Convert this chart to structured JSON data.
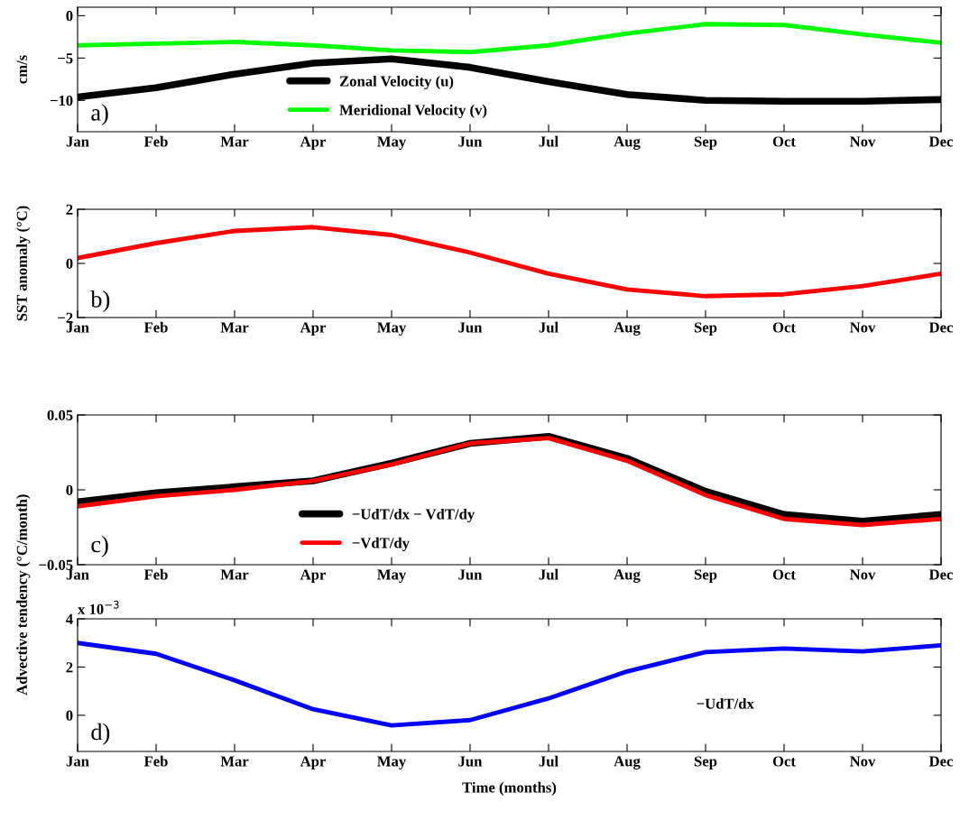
{
  "chart_data": [
    {
      "type": "line",
      "ylabel": "cm/s",
      "categories": [
        "Jan",
        "Feb",
        "Mar",
        "Apr",
        "May",
        "Jun",
        "Jul",
        "Aug",
        "Sep",
        "Oct",
        "Nov",
        "Dec"
      ],
      "ylim": [
        -13.7,
        1
      ],
      "yticks": [
        {
          "value": -10,
          "label": "−10"
        },
        {
          "value": -5,
          "label": "−5"
        },
        0
      ],
      "legend": "bottom",
      "grid": false,
      "annotations": [
        "a)"
      ],
      "series": [
        {
          "name": "Zonal Velocity (u)",
          "color": "#000000",
          "values": [
            -9.6,
            -8.5,
            -6.9,
            -5.6,
            -5.1,
            -6.1,
            -7.8,
            -9.3,
            -10,
            -10.1,
            -10.1,
            -9.9
          ]
        },
        {
          "name": "Meridional Velocity (v)",
          "color": "#00ff00",
          "values": [
            -3.5,
            -3.3,
            -3.1,
            -3.5,
            -4.1,
            -4.3,
            -3.5,
            -2.1,
            -1.0,
            -1.1,
            -2.2,
            -3.2
          ]
        }
      ]
    },
    {
      "type": "line",
      "ylabel": "SST anomaly (°C)",
      "categories": [
        "Jan",
        "Feb",
        "Mar",
        "Apr",
        "May",
        "Jun",
        "Jul",
        "Aug",
        "Sep",
        "Oct",
        "Nov",
        "Dec"
      ],
      "ylim": [
        -2,
        2
      ],
      "yticks": [
        {
          "value": -2,
          "label": "−2"
        },
        0,
        2
      ],
      "grid": false,
      "annotations": [
        "b)"
      ],
      "series": [
        {
          "color": "#ff0000",
          "values": [
            0.2,
            0.75,
            1.2,
            1.34,
            1.05,
            0.4,
            -0.38,
            -0.96,
            -1.21,
            -1.14,
            -0.84,
            -0.38
          ]
        }
      ]
    },
    {
      "type": "line",
      "ylabel": "Advective tendency (°C/month)",
      "categories": [
        "Jan",
        "Feb",
        "Mar",
        "Apr",
        "May",
        "Jun",
        "Jul",
        "Aug",
        "Sep",
        "Oct",
        "Nov",
        "Dec"
      ],
      "ylim": [
        -0.05,
        0.05
      ],
      "yticks": [
        {
          "value": -0.05,
          "label": "−0.05"
        },
        0,
        0.05
      ],
      "legend": "bottom",
      "grid": false,
      "annotations": [
        "c)"
      ],
      "series": [
        {
          "name": "−UdT/dx − VdT/dy",
          "color": "#000000",
          "values": [
            -0.008,
            -0.002,
            0.002,
            0.006,
            0.0178,
            0.031,
            0.0357,
            0.021,
            -0.001,
            -0.0165,
            -0.021,
            -0.0165
          ]
        },
        {
          "name": "−VdT/dy",
          "color": "#ff0000",
          "values": [
            -0.011,
            -0.0043,
            0.0,
            0.006,
            0.017,
            0.031,
            0.0346,
            0.0194,
            -0.0035,
            -0.0194,
            -0.0235,
            -0.0194
          ]
        }
      ]
    },
    {
      "type": "line",
      "xlabel": "Time (months)",
      "categories": [
        "Jan",
        "Feb",
        "Mar",
        "Apr",
        "May",
        "Jun",
        "Jul",
        "Aug",
        "Sep",
        "Oct",
        "Nov",
        "Dec"
      ],
      "ylim": [
        -1.5,
        4
      ],
      "yticks": [
        0,
        2,
        4
      ],
      "grid": false,
      "annotations": [
        "d)",
        "x 10$^{−3}$",
        "−UdT/dx"
      ],
      "series": [
        {
          "color": "#0000ff",
          "values": [
            3.0,
            2.55,
            1.45,
            0.25,
            -0.42,
            -0.2,
            0.7,
            1.82,
            2.62,
            2.77,
            2.65,
            2.9
          ]
        }
      ]
    }
  ]
}
